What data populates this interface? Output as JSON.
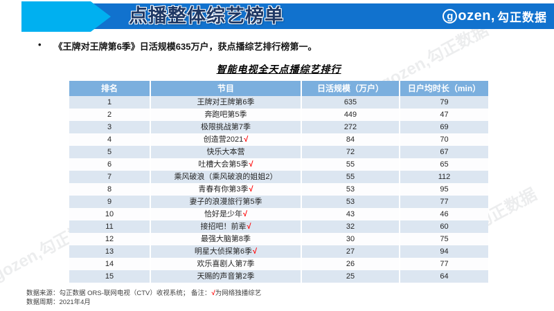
{
  "banner": {
    "title": "点播整体综艺榜单",
    "logo": {
      "g": "g",
      "latin": "ozen,",
      "cn": "勾正数据"
    }
  },
  "summary": {
    "bullet": "•",
    "text": "《王牌对王牌第6季》日活规模635万户，获点播综艺排行榜第一。"
  },
  "table": {
    "title": "智能电视全天点播综艺排行",
    "headers": [
      "排名",
      "节目",
      "日活规模（万户）",
      "日户均时长（min）"
    ],
    "rows": [
      {
        "rank": "1",
        "program": "王牌对王牌第6季",
        "check": "",
        "daily_active": "635",
        "avg_minutes": "79"
      },
      {
        "rank": "2",
        "program": "奔跑吧第5季",
        "check": "",
        "daily_active": "449",
        "avg_minutes": "47"
      },
      {
        "rank": "3",
        "program": "极限挑战第7季",
        "check": "",
        "daily_active": "272",
        "avg_minutes": "69"
      },
      {
        "rank": "4",
        "program": "创造营2021",
        "check": "√",
        "daily_active": "84",
        "avg_minutes": "70"
      },
      {
        "rank": "5",
        "program": "快乐大本营",
        "check": "",
        "daily_active": "72",
        "avg_minutes": "67"
      },
      {
        "rank": "6",
        "program": "吐槽大会第5季",
        "check": "√",
        "daily_active": "55",
        "avg_minutes": "65"
      },
      {
        "rank": "7",
        "program": "乘风破浪（乘风破浪的姐姐2）",
        "check": "",
        "daily_active": "55",
        "avg_minutes": "112"
      },
      {
        "rank": "8",
        "program": "青春有你第3季",
        "check": "√",
        "daily_active": "53",
        "avg_minutes": "95"
      },
      {
        "rank": "9",
        "program": "妻子的浪漫旅行第5季",
        "check": "",
        "daily_active": "53",
        "avg_minutes": "77"
      },
      {
        "rank": "10",
        "program": "恰好是少年",
        "check": "√",
        "daily_active": "43",
        "avg_minutes": "46"
      },
      {
        "rank": "11",
        "program": "接招吧！前辈",
        "check": "√",
        "daily_active": "32",
        "avg_minutes": "60"
      },
      {
        "rank": "12",
        "program": "最强大脑第8季",
        "check": "",
        "daily_active": "30",
        "avg_minutes": "75"
      },
      {
        "rank": "13",
        "program": "明星大侦探第6季",
        "check": "√",
        "daily_active": "27",
        "avg_minutes": "94"
      },
      {
        "rank": "14",
        "program": "欢乐喜剧人第7季",
        "check": "",
        "daily_active": "26",
        "avg_minutes": "77"
      },
      {
        "rank": "15",
        "program": "天赐的声音第2季",
        "check": "",
        "daily_active": "25",
        "avg_minutes": "64"
      }
    ]
  },
  "footer": {
    "source_prefix": "数据来源：勾正数据 ORS-联网电视（CTV）收视系统；  备注：",
    "check": "√",
    "source_suffix": "为网络独播综艺",
    "period": "数据周期：2021年4月"
  },
  "watermark": "gozen,勾正数据",
  "colors": {
    "banner_bar": "#1172ce",
    "banner_arrow": "#00b0f0",
    "banner_title_text": "#1f3864",
    "table_header_bg": "#7bafde",
    "row_alt_bg": "#dce6f1",
    "check_red": "#ff0000"
  }
}
